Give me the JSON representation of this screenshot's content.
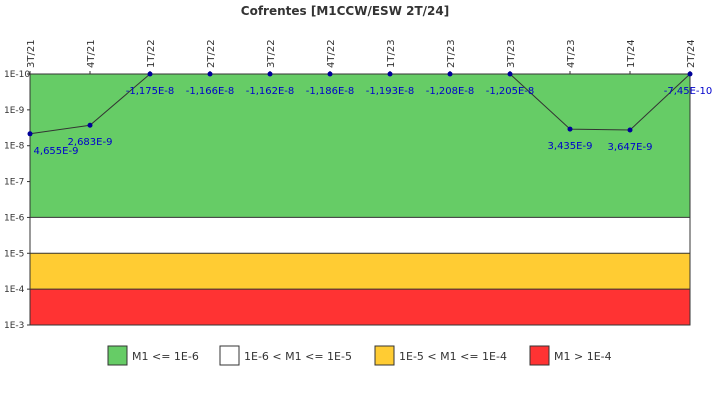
{
  "chart_data": {
    "type": "line",
    "title": "Cofrentes [M1CCW/ESW 2T/24]",
    "y_scale": "log",
    "y_inverted": true,
    "y_ticks": [
      "1E-10",
      "1E-9",
      "1E-8",
      "1E-7",
      "1E-6",
      "1E-5",
      "1E-4",
      "1E-3"
    ],
    "ylim": [
      1e-10,
      0.001
    ],
    "categories": [
      "3T/21",
      "4T/21",
      "1T/22",
      "2T/22",
      "3T/22",
      "4T/22",
      "1T/23",
      "2T/23",
      "3T/23",
      "4T/23",
      "1T/24",
      "2T/24"
    ],
    "values": [
      4.655e-09,
      2.683e-09,
      -1.175e-08,
      -1.166e-08,
      -1.162e-08,
      -1.186e-08,
      -1.193e-08,
      -1.208e-08,
      -1.205e-08,
      3.435e-09,
      3.647e-09,
      -7.45e-10
    ],
    "data_labels": [
      "4,655E-9",
      "2,683E-9",
      "-1,175E-8",
      "-1,166E-8",
      "-1,162E-8",
      "-1,186E-8",
      "-1,193E-8",
      "-1,208E-8",
      "-1,205E-8",
      "3,435E-9",
      "3,647E-9",
      "-7,45E-10"
    ],
    "line_color": "#333333",
    "point_color": "#000099",
    "label_color": "#0000cc",
    "bands": [
      {
        "from": 1e-10,
        "to": 1e-06,
        "color": "#66cc66",
        "label": "M1 <= 1E-6"
      },
      {
        "from": 1e-06,
        "to": 1e-05,
        "color": "#ffffff",
        "label": "1E-6 < M1 <= 1E-5"
      },
      {
        "from": 1e-05,
        "to": 0.0001,
        "color": "#ffcc33",
        "label": "1E-5 < M1 <= 1E-4"
      },
      {
        "from": 0.0001,
        "to": 0.001,
        "color": "#ff3333",
        "label": "M1 > 1E-4"
      }
    ],
    "legend_position": "bottom"
  }
}
